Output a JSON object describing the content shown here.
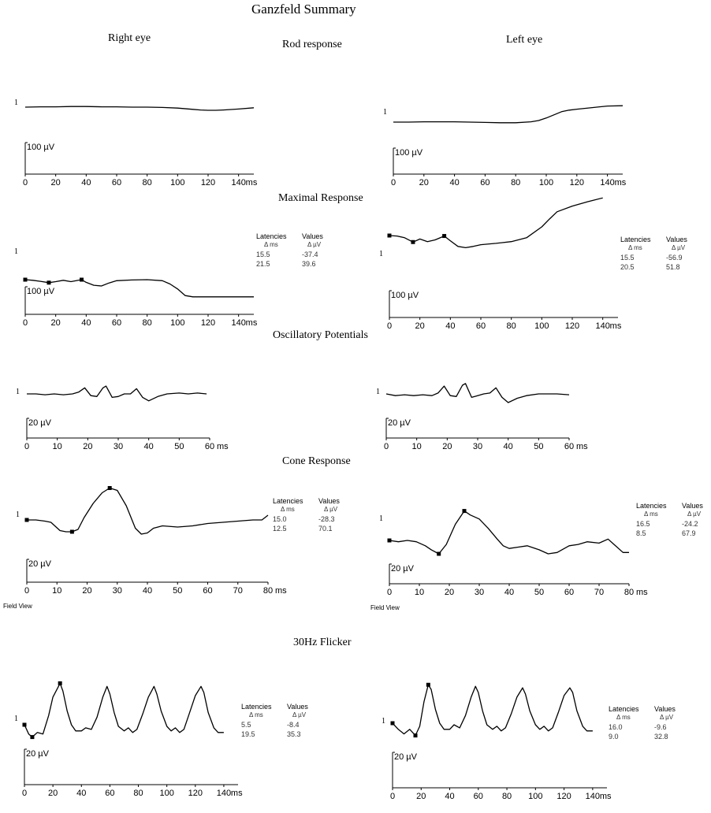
{
  "page_title": "Ganzfeld Summary",
  "eye_labels": {
    "right": "Right eye",
    "left": "Left eye"
  },
  "section_titles": {
    "rod": "Rod response",
    "maximal": "Maximal  Response",
    "ops": "Oscillatory Potentials",
    "cone": "Cone Response",
    "flicker": "30Hz Flicker"
  },
  "field_view_label": "Field View",
  "measurements_headers": {
    "latencies": "Latencies",
    "values": "Values",
    "lat_unit": "Δ ms",
    "val_unit": "Δ µV"
  },
  "measurements": {
    "maximal_right": {
      "latencies": [
        "15.5",
        "21.5"
      ],
      "values": [
        "-37.4",
        "39.6"
      ]
    },
    "maximal_left": {
      "latencies": [
        "15.5",
        "20.5"
      ],
      "values": [
        "-56.9",
        "51.8"
      ]
    },
    "cone_right": {
      "latencies": [
        "15.0",
        "12.5"
      ],
      "values": [
        "-28.3",
        "70.1"
      ]
    },
    "cone_left": {
      "latencies": [
        "16.5",
        "8.5"
      ],
      "values": [
        "-24.2",
        "67.9"
      ]
    },
    "flicker_right": {
      "latencies": [
        "5.5",
        "19.5"
      ],
      "values": [
        "-8.4",
        "35.3"
      ]
    },
    "flicker_left": {
      "latencies": [
        "16.0",
        "9.0"
      ],
      "values": [
        "-9.6",
        "32.8"
      ]
    }
  },
  "chart_data": [
    {
      "type": "line",
      "id": "rod_right",
      "xlim": [
        0,
        150
      ],
      "x_ticks": [
        0,
        20,
        40,
        60,
        80,
        100,
        120,
        140
      ],
      "x_unit": "ms",
      "scale_bar": "100 µV",
      "scale_bar_uv": 100,
      "trace_label": "1",
      "series": [
        {
          "x": [
            0,
            10,
            20,
            30,
            40,
            50,
            60,
            70,
            80,
            90,
            100,
            110,
            115,
            120,
            125,
            130,
            140,
            150
          ],
          "y": [
            0,
            1,
            1,
            2,
            2,
            1,
            1,
            0,
            0,
            -1,
            -3,
            -7,
            -9,
            -10,
            -10,
            -9,
            -6,
            -2
          ]
        }
      ],
      "markers": []
    },
    {
      "type": "line",
      "id": "rod_left",
      "xlim": [
        0,
        150
      ],
      "x_ticks": [
        0,
        20,
        40,
        60,
        80,
        100,
        120,
        140
      ],
      "x_unit": "ms",
      "scale_bar": "100 µV",
      "scale_bar_uv": 100,
      "trace_label": "1",
      "series": [
        {
          "x": [
            0,
            10,
            20,
            30,
            40,
            50,
            60,
            70,
            80,
            90,
            95,
            100,
            105,
            110,
            115,
            120,
            130,
            140,
            150
          ],
          "y": [
            0,
            0,
            1,
            1,
            1,
            0,
            -1,
            -2,
            -2,
            1,
            5,
            13,
            23,
            33,
            38,
            41,
            46,
            51,
            52
          ]
        }
      ],
      "markers": []
    },
    {
      "type": "line",
      "id": "maximal_right",
      "xlim": [
        0,
        150
      ],
      "x_ticks": [
        0,
        20,
        40,
        60,
        80,
        100,
        120,
        140
      ],
      "x_unit": "ms",
      "scale_bar": "100 µV",
      "scale_bar_uv": 100,
      "trace_label": "1",
      "series": [
        {
          "x": [
            0,
            5,
            10,
            15.5,
            20,
            25,
            30,
            37,
            40,
            45,
            50,
            55,
            60,
            70,
            80,
            90,
            95,
            100,
            105,
            110,
            120,
            150
          ],
          "y": [
            0,
            -2,
            -5,
            -9,
            -6,
            -2,
            -6,
            0,
            -8,
            -17,
            -19,
            -10,
            -3,
            -1,
            0,
            -3,
            -13,
            -28,
            -48,
            -52,
            -52,
            -52
          ]
        }
      ],
      "markers": [
        {
          "x": 0,
          "y": 0
        },
        {
          "x": 15.5,
          "y": -9
        },
        {
          "x": 37,
          "y": 0
        }
      ]
    },
    {
      "type": "line",
      "id": "maximal_left",
      "xlim": [
        0,
        150
      ],
      "x_ticks": [
        0,
        20,
        40,
        60,
        80,
        100,
        120,
        140
      ],
      "x_unit": "ms",
      "scale_bar": "100 µV",
      "scale_bar_uv": 100,
      "trace_label": "1",
      "series": [
        {
          "x": [
            0,
            5,
            10,
            15.5,
            20,
            25,
            30,
            36,
            40,
            45,
            50,
            55,
            60,
            70,
            80,
            90,
            100,
            105,
            110,
            120,
            130,
            140
          ],
          "y": [
            0,
            -1,
            -5,
            -15,
            -8,
            -14,
            -10,
            -1,
            -12,
            -25,
            -28,
            -25,
            -21,
            -18,
            -14,
            -5,
            20,
            38,
            55,
            68,
            78,
            87
          ]
        }
      ],
      "markers": [
        {
          "x": 0,
          "y": 0
        },
        {
          "x": 15.5,
          "y": -15
        },
        {
          "x": 36,
          "y": -1
        }
      ]
    },
    {
      "type": "line",
      "id": "ops_right",
      "xlim": [
        0,
        60
      ],
      "x_ticks": [
        0,
        10,
        20,
        30,
        40,
        50,
        60
      ],
      "x_unit": "ms",
      "scale_bar": "20 µV",
      "scale_bar_uv": 20,
      "trace_label": "1",
      "series": [
        {
          "x": [
            0,
            3,
            6,
            9,
            12,
            15,
            17,
            19,
            21,
            23,
            25,
            26,
            28,
            30,
            32,
            34,
            36,
            38,
            40,
            43,
            46,
            50,
            53,
            56,
            59
          ],
          "y": [
            0,
            0,
            -1,
            0,
            -1,
            0,
            2,
            7,
            -2,
            -3,
            7,
            9,
            -4,
            -3,
            0,
            0,
            6,
            -4,
            -8,
            -3,
            0,
            1,
            0,
            1,
            0
          ]
        }
      ],
      "markers": []
    },
    {
      "type": "line",
      "id": "ops_left",
      "xlim": [
        0,
        60
      ],
      "x_ticks": [
        0,
        10,
        20,
        30,
        40,
        50,
        60
      ],
      "x_unit": "ms",
      "scale_bar": "20 µV",
      "scale_bar_uv": 20,
      "trace_label": "1",
      "series": [
        {
          "x": [
            0,
            3,
            6,
            9,
            12,
            15,
            17,
            19,
            21,
            23,
            25,
            26,
            28,
            30,
            32,
            34,
            36,
            38,
            40,
            43,
            46,
            50,
            53,
            56,
            60
          ],
          "y": [
            0,
            -2,
            -1,
            -2,
            -1,
            -2,
            1,
            9,
            -2,
            -3,
            10,
            12,
            -4,
            -2,
            0,
            1,
            7,
            -4,
            -10,
            -5,
            -2,
            0,
            0,
            0,
            -1
          ]
        }
      ],
      "markers": []
    },
    {
      "type": "line",
      "id": "cone_right",
      "xlim": [
        0,
        80
      ],
      "x_ticks": [
        0,
        10,
        20,
        30,
        40,
        50,
        60,
        70,
        80
      ],
      "x_unit": "ms",
      "scale_bar": "20 µV",
      "scale_bar_uv": 20,
      "trace_label": "1",
      "series": [
        {
          "x": [
            0,
            3,
            6,
            8,
            11,
            13,
            15,
            17,
            19,
            22,
            25,
            27.5,
            30,
            33,
            36,
            38,
            40,
            42,
            45,
            50,
            55,
            60,
            65,
            70,
            75,
            78,
            80
          ],
          "y": [
            0,
            0,
            -1,
            -2,
            -9,
            -10,
            -10,
            -8,
            2,
            14,
            23,
            27,
            25,
            12,
            -7,
            -12,
            -11,
            -7,
            -5,
            -6,
            -5,
            -3,
            -2,
            -1,
            0,
            0,
            4
          ]
        }
      ],
      "markers": [
        {
          "x": 0,
          "y": 0
        },
        {
          "x": 15,
          "y": -10
        },
        {
          "x": 27.5,
          "y": 27
        }
      ]
    },
    {
      "type": "line",
      "id": "cone_left",
      "xlim": [
        0,
        80
      ],
      "x_ticks": [
        0,
        10,
        20,
        30,
        40,
        50,
        60,
        70,
        80
      ],
      "x_unit": "ms",
      "scale_bar": "20 µV",
      "scale_bar_uv": 20,
      "trace_label": "1",
      "series": [
        {
          "x": [
            0,
            3,
            6,
            9,
            12,
            14,
            16.5,
            19,
            22,
            25,
            27,
            30,
            33,
            36,
            38,
            40,
            43,
            46,
            50,
            53,
            56,
            60,
            63,
            66,
            70,
            73,
            75,
            78,
            80
          ],
          "y": [
            0,
            -1,
            0,
            -1,
            -4,
            -7,
            -10,
            -3,
            12,
            22,
            19,
            16,
            9,
            1,
            -4,
            -6,
            -5,
            -4,
            -7,
            -10,
            -9,
            -4,
            -3,
            -1,
            -2,
            1,
            -3,
            -9,
            -9
          ]
        }
      ],
      "markers": [
        {
          "x": 0,
          "y": 0
        },
        {
          "x": 16.5,
          "y": -10
        },
        {
          "x": 25,
          "y": 22
        }
      ]
    },
    {
      "type": "line",
      "id": "flicker_right",
      "xlim": [
        0,
        150
      ],
      "x_ticks": [
        0,
        20,
        40,
        60,
        80,
        100,
        120,
        140
      ],
      "x_unit": "ms",
      "scale_bar": "20 µV",
      "scale_bar_uv": 20,
      "trace_label": "1",
      "series": [
        {
          "x": [
            0,
            3,
            5.5,
            9,
            13,
            17,
            20,
            25,
            27,
            30,
            33,
            36,
            40,
            43,
            47,
            51,
            55,
            58,
            60,
            63,
            66,
            70,
            73,
            76,
            79,
            83,
            87,
            91,
            93,
            96,
            100,
            103,
            106,
            109,
            112,
            116,
            120,
            124,
            126,
            129,
            133,
            136,
            140
          ],
          "y": [
            0,
            -6,
            -8,
            -5,
            -6,
            6,
            18,
            27,
            22,
            9,
            0,
            -4,
            -4,
            -2,
            -3,
            5,
            18,
            25,
            20,
            8,
            -1,
            -4,
            -2,
            -5,
            -3,
            7,
            18,
            25,
            20,
            9,
            -1,
            -4,
            -2,
            -5,
            -3,
            8,
            19,
            25,
            21,
            8,
            -2,
            -5,
            -5
          ]
        }
      ],
      "markers": [
        {
          "x": 0,
          "y": 0
        },
        {
          "x": 5.5,
          "y": -8
        },
        {
          "x": 25,
          "y": 27
        }
      ]
    },
    {
      "type": "line",
      "id": "flicker_left",
      "xlim": [
        0,
        150
      ],
      "x_ticks": [
        0,
        20,
        40,
        60,
        80,
        100,
        120,
        140
      ],
      "x_unit": "ms",
      "scale_bar": "20 µV",
      "scale_bar_uv": 20,
      "trace_label": "1",
      "series": [
        {
          "x": [
            0,
            4,
            8,
            12,
            16,
            19,
            22,
            25,
            27,
            30,
            33,
            36,
            40,
            43,
            47,
            51,
            55,
            58,
            60,
            63,
            66,
            70,
            73,
            76,
            79,
            83,
            87,
            91,
            93,
            96,
            100,
            103,
            106,
            109,
            112,
            116,
            120,
            124,
            126,
            129,
            133,
            136,
            140
          ],
          "y": [
            0,
            -4,
            -7,
            -4,
            -8,
            -2,
            14,
            25,
            22,
            9,
            0,
            -4,
            -4,
            -1,
            -3,
            5,
            17,
            24,
            20,
            8,
            -1,
            -4,
            -2,
            -5,
            -3,
            6,
            17,
            23,
            19,
            8,
            -1,
            -4,
            -2,
            -5,
            -3,
            7,
            18,
            23,
            20,
            8,
            -2,
            -5,
            -5
          ]
        }
      ],
      "markers": [
        {
          "x": 0,
          "y": 0
        },
        {
          "x": 16,
          "y": -8
        },
        {
          "x": 25,
          "y": 25
        }
      ]
    }
  ]
}
